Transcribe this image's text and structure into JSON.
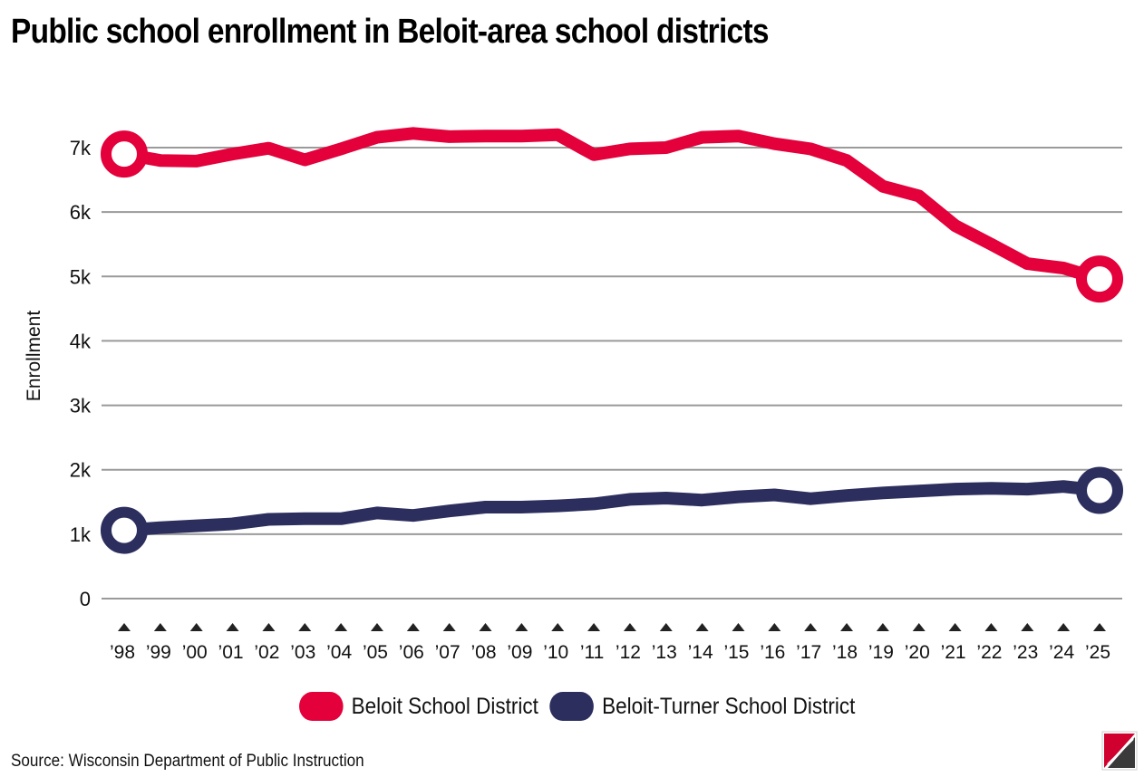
{
  "title": "Public school enrollment in Beloit-area school districts",
  "source": "Source: Wisconsin Department of Public Instruction",
  "colors": {
    "beloit": "#e4003b",
    "beloit_turner": "#2c2f5e",
    "grid": "#9a9a9a",
    "tick_marker": "#222222"
  },
  "chart_data": {
    "type": "line",
    "title": "Public school enrollment in Beloit-area school districts",
    "xlabel": "",
    "ylabel": "Enrollment",
    "ylim": [
      0,
      7000
    ],
    "y_ticks": [
      0,
      1000,
      2000,
      3000,
      4000,
      5000,
      6000,
      7000
    ],
    "y_tick_labels": [
      "0",
      "1k",
      "2k",
      "3k",
      "4k",
      "5k",
      "6k",
      "7k"
    ],
    "x_tick_labels": [
      "’98",
      "’99",
      "’00",
      "’01",
      "’02",
      "’03",
      "’04",
      "’05",
      "’06",
      "’07",
      "’08",
      "’09",
      "’10",
      "’11",
      "’12",
      "’13",
      "’14",
      "’15",
      "’16",
      "’17",
      "’18",
      "’19",
      "’20",
      "’21",
      "’22",
      "’23",
      "’24",
      "’25"
    ],
    "legend": "bottom",
    "series": [
      {
        "name": "Beloit School District",
        "values": [
          6900,
          6800,
          6790,
          6900,
          6990,
          6810,
          6980,
          7160,
          7220,
          7170,
          7180,
          7180,
          7200,
          6890,
          6980,
          7000,
          7160,
          7180,
          7060,
          6980,
          6800,
          6400,
          6250,
          5790,
          5500,
          5200,
          5130,
          4960
        ]
      },
      {
        "name": "Beloit-Turner School District",
        "values": [
          1060,
          1100,
          1130,
          1160,
          1230,
          1240,
          1240,
          1330,
          1290,
          1360,
          1420,
          1420,
          1440,
          1470,
          1540,
          1560,
          1530,
          1580,
          1610,
          1550,
          1600,
          1640,
          1670,
          1700,
          1710,
          1700,
          1740,
          1680
        ]
      }
    ]
  }
}
